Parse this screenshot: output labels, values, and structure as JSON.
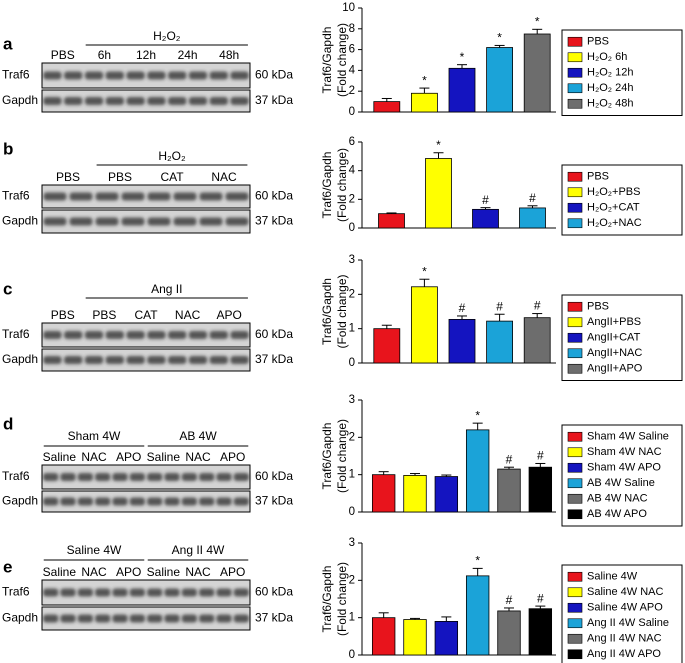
{
  "chart_data": [
    {
      "type": "bar",
      "ylabel": [
        "Traf6/Gapdh",
        "(Fold change)"
      ],
      "ylim": [
        0,
        10
      ],
      "yticks": [
        0,
        2,
        4,
        6,
        8,
        10
      ],
      "series": [
        {
          "name": "PBS",
          "color": "#e8141c"
        },
        {
          "name": "H₂O₂ 6h",
          "color": "#ffff00"
        },
        {
          "name": "H₂O₂ 12h",
          "color": "#1414c0"
        },
        {
          "name": "H₂O₂ 24h",
          "color": "#1ba3d8"
        },
        {
          "name": "H₂O₂ 48h",
          "color": "#6d6d6d"
        }
      ],
      "values": [
        1.0,
        1.8,
        4.2,
        6.2,
        7.5
      ],
      "errors": [
        0.3,
        0.5,
        0.35,
        0.2,
        0.45
      ],
      "annotations": [
        null,
        "*",
        "*",
        "*",
        "*"
      ]
    },
    {
      "type": "bar",
      "ylabel": [
        "Traf6/Gapdh",
        "(Fold change)"
      ],
      "ylim": [
        0,
        6
      ],
      "yticks": [
        0,
        2,
        4,
        6
      ],
      "series": [
        {
          "name": "PBS",
          "color": "#e8141c"
        },
        {
          "name": "H₂O₂+PBS",
          "color": "#ffff00"
        },
        {
          "name": "H₂O₂+CAT",
          "color": "#1414c0"
        },
        {
          "name": "H₂O₂+NAC",
          "color": "#1ba3d8"
        }
      ],
      "values": [
        1.0,
        4.85,
        1.3,
        1.4
      ],
      "errors": [
        0.05,
        0.4,
        0.12,
        0.15
      ],
      "annotations": [
        null,
        "*",
        "#",
        "#"
      ]
    },
    {
      "type": "bar",
      "ylabel": [
        "Traf6/Gapdh",
        "(Fold change)"
      ],
      "ylim": [
        0,
        3
      ],
      "yticks": [
        0,
        1,
        2,
        3
      ],
      "series": [
        {
          "name": "PBS",
          "color": "#e8141c"
        },
        {
          "name": "AngII+PBS",
          "color": "#ffff00"
        },
        {
          "name": "AngII+CAT",
          "color": "#1414c0"
        },
        {
          "name": "AngII+NAC",
          "color": "#1ba3d8"
        },
        {
          "name": "AngII+APO",
          "color": "#6d6d6d"
        }
      ],
      "values": [
        1.0,
        2.22,
        1.27,
        1.22,
        1.32
      ],
      "errors": [
        0.1,
        0.22,
        0.1,
        0.2,
        0.12
      ],
      "annotations": [
        null,
        "*",
        "#",
        "#",
        "#"
      ]
    },
    {
      "type": "bar",
      "ylabel": [
        "Traf6/Gapdh",
        "(Fold change)"
      ],
      "ylim": [
        0,
        3
      ],
      "yticks": [
        0,
        1,
        2,
        3
      ],
      "series": [
        {
          "name": "Sham 4W Saline",
          "color": "#e8141c"
        },
        {
          "name": "Sham 4W NAC",
          "color": "#ffff00"
        },
        {
          "name": "Sham 4W APO",
          "color": "#1414c0"
        },
        {
          "name": "AB 4W Saline",
          "color": "#1ba3d8"
        },
        {
          "name": "AB 4W NAC",
          "color": "#6d6d6d"
        },
        {
          "name": "AB 4W APO",
          "color": "#000000"
        }
      ],
      "values": [
        1.0,
        0.98,
        0.95,
        2.2,
        1.15,
        1.2
      ],
      "errors": [
        0.08,
        0.05,
        0.04,
        0.18,
        0.05,
        0.1
      ],
      "annotations": [
        null,
        null,
        null,
        "*",
        "#",
        "#"
      ]
    },
    {
      "type": "bar",
      "ylabel": [
        "Traf6/Gapdh",
        "(Fold change)"
      ],
      "ylim": [
        0,
        3
      ],
      "yticks": [
        0,
        1,
        2,
        3
      ],
      "series": [
        {
          "name": "Saline 4W",
          "color": "#e8141c"
        },
        {
          "name": "Saline 4W NAC",
          "color": "#ffff00"
        },
        {
          "name": "Saline 4W APO",
          "color": "#1414c0"
        },
        {
          "name": "Ang II 4W Saline",
          "color": "#1ba3d8"
        },
        {
          "name": "Ang II 4W NAC",
          "color": "#6d6d6d"
        },
        {
          "name": "Ang II 4W APO",
          "color": "#000000"
        }
      ],
      "values": [
        1.0,
        0.95,
        0.9,
        2.12,
        1.18,
        1.24
      ],
      "errors": [
        0.13,
        0.03,
        0.12,
        0.2,
        0.08,
        0.07
      ],
      "annotations": [
        null,
        null,
        null,
        "*",
        "#",
        "#"
      ]
    }
  ],
  "blots": [
    {
      "letter": "a",
      "groups": [
        "H₂O₂"
      ],
      "lanes": [
        "PBS",
        "6h",
        "12h",
        "24h",
        "48h"
      ],
      "rows": [
        {
          "name": "Traf6",
          "size": "60 kDa"
        },
        {
          "name": "Gapdh",
          "size": "37 kDa"
        }
      ]
    },
    {
      "letter": "b",
      "groups": [
        "H₂O₂"
      ],
      "lanes": [
        "PBS",
        "PBS",
        "CAT",
        "NAC"
      ],
      "rows": [
        {
          "name": "Traf6",
          "size": "60 kDa"
        },
        {
          "name": "Gapdh",
          "size": "37 kDa"
        }
      ]
    },
    {
      "letter": "c",
      "groups": [
        "Ang II"
      ],
      "lanes": [
        "PBS",
        "PBS",
        "CAT",
        "NAC",
        "APO"
      ],
      "rows": [
        {
          "name": "Traf6",
          "size": "60 kDa"
        },
        {
          "name": "Gapdh",
          "size": "37 kDa"
        }
      ]
    },
    {
      "letter": "d",
      "groups": [
        "Sham 4W",
        "AB 4W"
      ],
      "lanes": [
        "Saline",
        "NAC",
        "APO",
        "Saline",
        "NAC",
        "APO"
      ],
      "rows": [
        {
          "name": "Traf6",
          "size": "60 kDa"
        },
        {
          "name": "Gapdh",
          "size": "37 kDa"
        }
      ]
    },
    {
      "letter": "e",
      "groups": [
        "Saline 4W",
        "Ang II 4W"
      ],
      "lanes": [
        "Saline",
        "NAC",
        "APO",
        "Saline",
        "NAC",
        "APO"
      ],
      "rows": [
        {
          "name": "Traf6",
          "size": "60 kDa"
        },
        {
          "name": "Gapdh",
          "size": "37 kDa"
        }
      ]
    }
  ]
}
